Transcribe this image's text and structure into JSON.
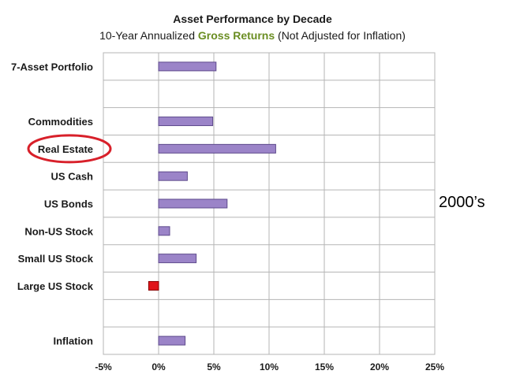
{
  "title": "Asset Performance by Decade",
  "subtitle": {
    "before": "10-Year Annualized ",
    "highlight": "Gross Returns",
    "after": " (Not Adjusted for Inflation)"
  },
  "decade_label": "2000’s",
  "colors": {
    "positive_bar": "#9b84c8",
    "negative_bar": "#e0141a",
    "grid": "#b5b5b5",
    "highlight_text": "#6b8e23",
    "annotation_circle": "#d8202a"
  },
  "chart_data": {
    "type": "bar",
    "orientation": "horizontal",
    "categories": [
      "7-Asset Portfolio",
      "",
      "Commodities",
      "Real Estate",
      "US Cash",
      "US Bonds",
      "Non-US Stock",
      "Small US Stock",
      "Large US Stock",
      "",
      "Inflation"
    ],
    "values": [
      5.2,
      null,
      4.9,
      10.6,
      2.6,
      6.2,
      1.0,
      3.4,
      -0.9,
      null,
      2.4
    ],
    "xlim": [
      -5,
      25
    ],
    "xticks": [
      -5,
      0,
      5,
      10,
      15,
      20,
      25
    ],
    "xtick_labels": [
      "-5%",
      "0%",
      "5%",
      "10%",
      "15%",
      "20%",
      "25%"
    ],
    "xlabel": "",
    "ylabel": "",
    "grid": true,
    "annotation": {
      "type": "circle",
      "target": "Real Estate"
    }
  }
}
